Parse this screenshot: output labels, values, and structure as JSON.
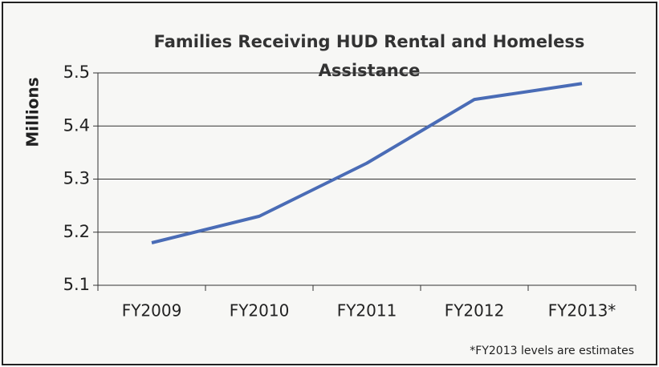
{
  "chart_data": {
    "type": "line",
    "title": "Families Receiving HUD Rental and Homeless Assistance",
    "y_label": "Millions",
    "note": "*FY2013 levels are estimates",
    "categories": [
      "FY2009",
      "FY2010",
      "FY2011",
      "FY2012",
      "FY2013*"
    ],
    "series": [
      {
        "name": "Families",
        "color": "#4a6cb6",
        "values": [
          5.18,
          5.23,
          5.33,
          5.45,
          5.48
        ]
      }
    ],
    "ylim": [
      5.1,
      5.5
    ],
    "yticks": [
      {
        "value": 5.1,
        "label": "5.1"
      },
      {
        "value": 5.2,
        "label": "5.2"
      },
      {
        "value": 5.3,
        "label": "5.3"
      },
      {
        "value": 5.4,
        "label": "5.4"
      },
      {
        "value": 5.5,
        "label": "5.5"
      }
    ],
    "grid": true
  }
}
